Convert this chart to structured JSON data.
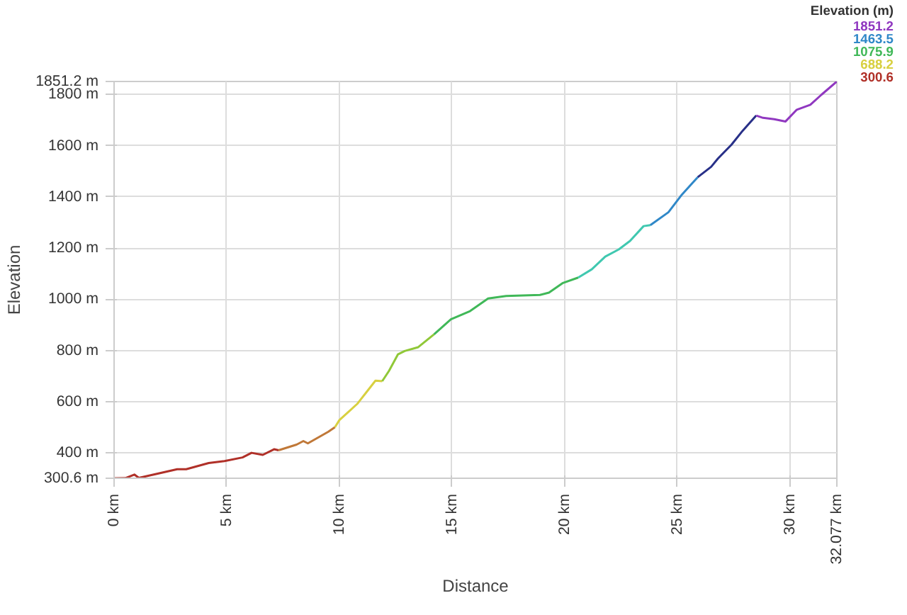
{
  "chart_data": {
    "type": "line",
    "xlabel": "Distance",
    "ylabel": "Elevation",
    "clabel": "Elevation (m)",
    "annotations": [
      "1851.2",
      "1463.5",
      "1075.9",
      "688.2",
      "300.6"
    ],
    "xlim": [
      0,
      32.077
    ],
    "xticks": [
      {
        "value": 0,
        "label": "0 km"
      },
      {
        "value": 5,
        "label": "5 km"
      },
      {
        "value": 10,
        "label": "10 km"
      },
      {
        "value": 15,
        "label": "15 km"
      },
      {
        "value": 20,
        "label": "20 km"
      },
      {
        "value": 25,
        "label": "25 km"
      },
      {
        "value": 30,
        "label": "30 km"
      },
      {
        "value": 32.077,
        "label": "32.077 km"
      }
    ],
    "ylim": [
      300.6,
      1851.2
    ],
    "yticks": [
      {
        "value": 300.6,
        "label": "300.6 m"
      },
      {
        "value": 400,
        "label": "400 m"
      },
      {
        "value": 600,
        "label": "600 m"
      },
      {
        "value": 800,
        "label": "800 m"
      },
      {
        "value": 1000,
        "label": "1000 m"
      },
      {
        "value": 1200,
        "label": "1200 m"
      },
      {
        "value": 1400,
        "label": "1400 m"
      },
      {
        "value": 1600,
        "label": "1600 m"
      },
      {
        "value": 1800,
        "label": "1800 m"
      },
      {
        "value": 1851.2,
        "label": "1851.2 m"
      }
    ],
    "grid": true,
    "line_style": "solid",
    "marker": "none",
    "series": [
      {
        "color": "#b03028",
        "x": [
          0,
          0.5,
          0.9,
          1.1,
          1.9,
          2.8,
          3.2,
          4.2,
          4.9,
          5.7,
          6.1,
          6.6,
          7.1,
          7.3
        ],
        "values": [
          300.6,
          301,
          315,
          302,
          318,
          336,
          336,
          360,
          368,
          382,
          400,
          392,
          414,
          410
        ]
      },
      {
        "color": "#c07838",
        "x": [
          7.3,
          8.1,
          8.4,
          8.6,
          9.5,
          9.8
        ],
        "values": [
          410,
          432,
          446,
          437,
          482,
          500
        ]
      },
      {
        "color": "#d8d040",
        "x": [
          9.8,
          10.0,
          10.4,
          10.8,
          11.2,
          11.6,
          11.9
        ],
        "values": [
          500,
          528,
          560,
          592,
          637,
          682,
          680
        ]
      },
      {
        "color": "#90c838",
        "x": [
          11.9,
          12.2,
          12.6,
          12.9,
          13.5,
          14.2
        ],
        "values": [
          680,
          720,
          785,
          798,
          813,
          863
        ]
      },
      {
        "color": "#40b858",
        "x": [
          14.2,
          14.95,
          15.8,
          16.6,
          17.4,
          18.9,
          19.3,
          19.9,
          20.6
        ],
        "values": [
          863,
          922,
          954,
          1003,
          1013,
          1017,
          1026,
          1063,
          1085
        ]
      },
      {
        "color": "#40c8b0",
        "x": [
          20.6,
          21.2,
          21.8,
          22.4,
          22.9,
          23.5,
          23.8
        ],
        "values": [
          1085,
          1117,
          1167,
          1195,
          1228,
          1286,
          1290
        ]
      },
      {
        "color": "#3088c8",
        "x": [
          23.8,
          24.6,
          25.2,
          25.9
        ],
        "values": [
          1290,
          1340,
          1409,
          1477
        ]
      },
      {
        "color": "#283088",
        "x": [
          25.9,
          26.5,
          26.8,
          27.4,
          27.9,
          28.5
        ],
        "values": [
          1477,
          1518,
          1550,
          1604,
          1659,
          1718
        ]
      },
      {
        "color": "#9038c0",
        "x": [
          28.5,
          28.8,
          29.3,
          29.8,
          30.3,
          30.9,
          31.4,
          32.077
        ],
        "values": [
          1718,
          1709,
          1704,
          1695,
          1741,
          1760,
          1800,
          1851.2
        ]
      }
    ]
  }
}
